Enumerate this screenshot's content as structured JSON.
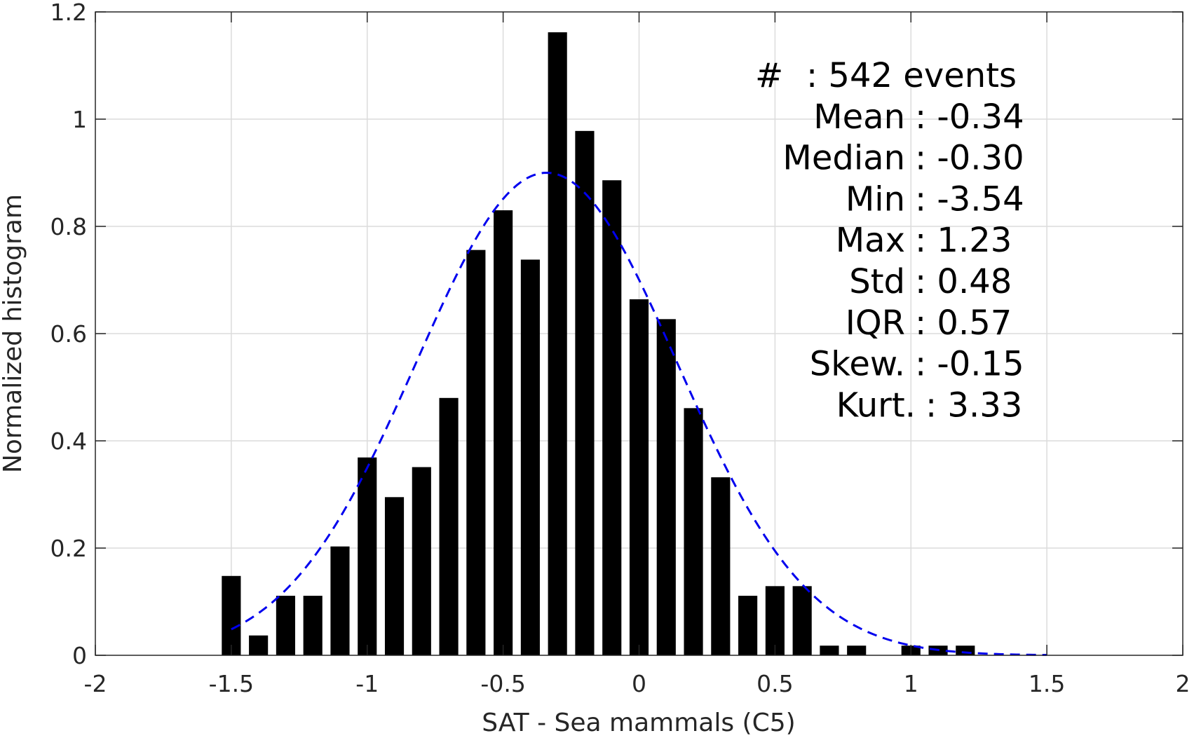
{
  "chart_data": {
    "type": "bar",
    "xlabel": "SAT - Sea mammals (C5)",
    "ylabel": "Normalized histogram",
    "xlim": [
      -2,
      2
    ],
    "ylim": [
      0,
      1.2
    ],
    "xticks": [
      -2,
      -1.5,
      -1,
      -0.5,
      0,
      0.5,
      1,
      1.5,
      2
    ],
    "xtick_labels": [
      "-2",
      "-1.5",
      "-1",
      "-0.5",
      "0",
      "0.5",
      "1",
      "1.5",
      "2"
    ],
    "yticks": [
      0,
      0.2,
      0.4,
      0.6,
      0.8,
      1.0,
      1.2
    ],
    "ytick_labels": [
      "0",
      "0.2",
      "0.4",
      "0.6",
      "0.8",
      "1",
      "1.2"
    ],
    "grid": true,
    "bar_color": "#000000",
    "bin_width": 0.1,
    "bins": [
      {
        "x": -1.5,
        "value": 0.148
      },
      {
        "x": -1.4,
        "value": 0.037
      },
      {
        "x": -1.3,
        "value": 0.111
      },
      {
        "x": -1.2,
        "value": 0.111
      },
      {
        "x": -1.1,
        "value": 0.203
      },
      {
        "x": -1.0,
        "value": 0.369
      },
      {
        "x": -0.9,
        "value": 0.295
      },
      {
        "x": -0.8,
        "value": 0.351
      },
      {
        "x": -0.7,
        "value": 0.48
      },
      {
        "x": -0.6,
        "value": 0.756
      },
      {
        "x": -0.5,
        "value": 0.83
      },
      {
        "x": -0.4,
        "value": 0.738
      },
      {
        "x": -0.3,
        "value": 1.162
      },
      {
        "x": -0.2,
        "value": 0.978
      },
      {
        "x": -0.1,
        "value": 0.886
      },
      {
        "x": 0.0,
        "value": 0.664
      },
      {
        "x": 0.1,
        "value": 0.627
      },
      {
        "x": 0.2,
        "value": 0.461
      },
      {
        "x": 0.3,
        "value": 0.332
      },
      {
        "x": 0.4,
        "value": 0.111
      },
      {
        "x": 0.5,
        "value": 0.129
      },
      {
        "x": 0.6,
        "value": 0.129
      },
      {
        "x": 0.7,
        "value": 0.018
      },
      {
        "x": 0.8,
        "value": 0.018
      },
      {
        "x": 1.0,
        "value": 0.018
      },
      {
        "x": 1.1,
        "value": 0.018
      },
      {
        "x": 1.2,
        "value": 0.018
      }
    ],
    "fit_curve": {
      "type": "normal",
      "color": "#0000ee",
      "style": "dashed",
      "mean": -0.34,
      "std": 0.48,
      "peak": 0.9,
      "x_range": [
        -1.5,
        1.5
      ]
    },
    "stats": [
      {
        "label": "#  ",
        "value": ": 542 events"
      },
      {
        "label": "Mean",
        "value": ": -0.34"
      },
      {
        "label": "Median",
        "value": ": -0.30"
      },
      {
        "label": "Min",
        "value": ": -3.54"
      },
      {
        "label": "Max",
        "value": ": 1.23"
      },
      {
        "label": "Std",
        "value": ": 0.48"
      },
      {
        "label": "IQR",
        "value": ": 0.57"
      },
      {
        "label": "Skew.",
        "value": ": -0.15"
      },
      {
        "label": "Kurt.",
        "value": ": 3.33"
      }
    ],
    "stats_placement": "top-right"
  }
}
